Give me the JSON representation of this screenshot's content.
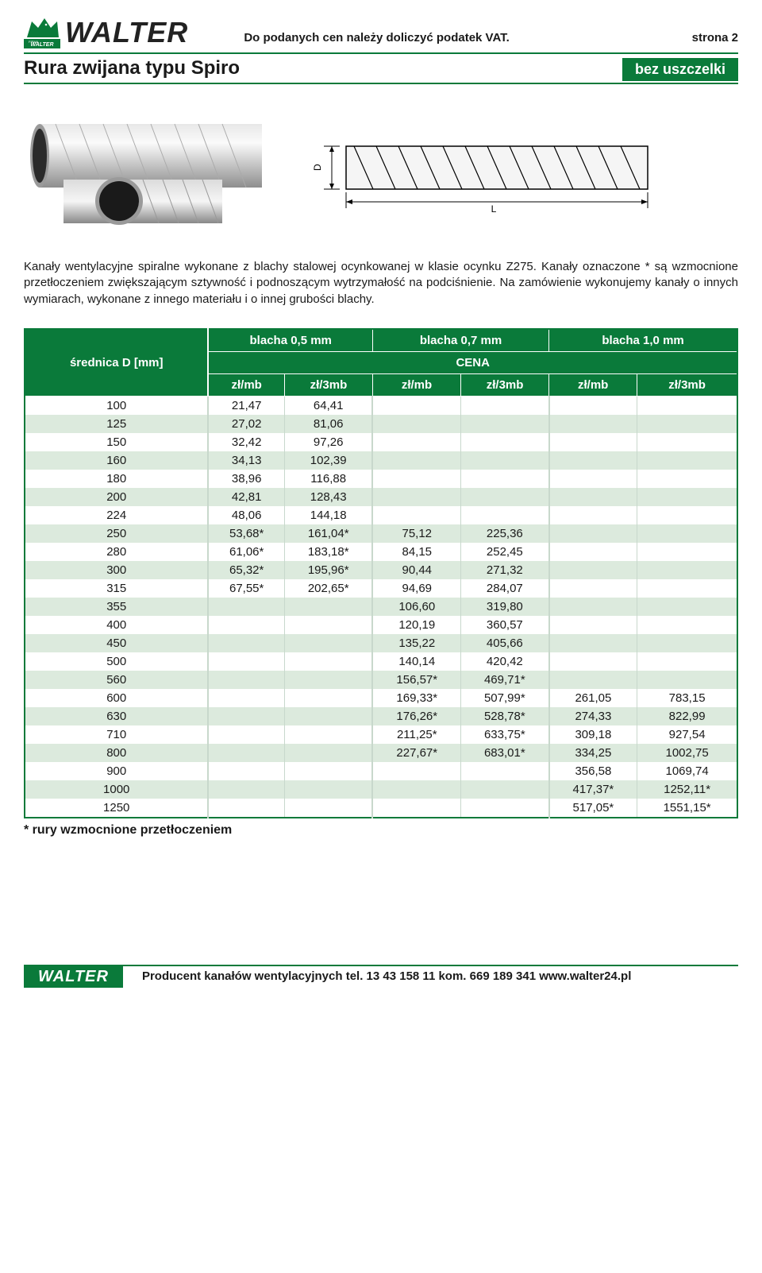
{
  "brand": "WALTER",
  "vat_note": "Do podanych cen należy doliczyć podatek VAT.",
  "page_label": "strona 2",
  "product_title": "Rura zwijana typu Spiro",
  "badge": "bez uszczelki",
  "dim_D": "D",
  "dim_L": "L",
  "description": "Kanały wentylacyjne spiralne wykonane z blachy stalowej ocynkowanej w klasie ocynku Z275. Kanały oznaczone * są wzmocnione przetłoczeniem zwiększającym sztywność i podnoszącym wytrzymałość na podciśnienie. Na zamówienie wykonujemy kanały o innych wymiarach, wykonane z innego materiału i o innej grubości blachy.",
  "table": {
    "row_header": "średnica D [mm]",
    "group_labels": [
      "blacha 0,5 mm",
      "blacha 0,7 mm",
      "blacha 1,0 mm"
    ],
    "price_header": "CENA",
    "sub_labels": [
      "zł/mb",
      "zł/3mb",
      "zł/mb",
      "zł/3mb",
      "zł/mb",
      "zł/3mb"
    ],
    "rows": [
      {
        "d": "100",
        "c": [
          "21,47",
          "64,41",
          "",
          "",
          "",
          ""
        ]
      },
      {
        "d": "125",
        "c": [
          "27,02",
          "81,06",
          "",
          "",
          "",
          ""
        ]
      },
      {
        "d": "150",
        "c": [
          "32,42",
          "97,26",
          "",
          "",
          "",
          ""
        ]
      },
      {
        "d": "160",
        "c": [
          "34,13",
          "102,39",
          "",
          "",
          "",
          ""
        ]
      },
      {
        "d": "180",
        "c": [
          "38,96",
          "116,88",
          "",
          "",
          "",
          ""
        ]
      },
      {
        "d": "200",
        "c": [
          "42,81",
          "128,43",
          "",
          "",
          "",
          ""
        ]
      },
      {
        "d": "224",
        "c": [
          "48,06",
          "144,18",
          "",
          "",
          "",
          ""
        ]
      },
      {
        "d": "250",
        "c": [
          "53,68*",
          "161,04*",
          "75,12",
          "225,36",
          "",
          ""
        ]
      },
      {
        "d": "280",
        "c": [
          "61,06*",
          "183,18*",
          "84,15",
          "252,45",
          "",
          ""
        ]
      },
      {
        "d": "300",
        "c": [
          "65,32*",
          "195,96*",
          "90,44",
          "271,32",
          "",
          ""
        ]
      },
      {
        "d": "315",
        "c": [
          "67,55*",
          "202,65*",
          "94,69",
          "284,07",
          "",
          ""
        ]
      },
      {
        "d": "355",
        "c": [
          "",
          "",
          "106,60",
          "319,80",
          "",
          ""
        ]
      },
      {
        "d": "400",
        "c": [
          "",
          "",
          "120,19",
          "360,57",
          "",
          ""
        ]
      },
      {
        "d": "450",
        "c": [
          "",
          "",
          "135,22",
          "405,66",
          "",
          ""
        ]
      },
      {
        "d": "500",
        "c": [
          "",
          "",
          "140,14",
          "420,42",
          "",
          ""
        ]
      },
      {
        "d": "560",
        "c": [
          "",
          "",
          "156,57*",
          "469,71*",
          "",
          ""
        ]
      },
      {
        "d": "600",
        "c": [
          "",
          "",
          "169,33*",
          "507,99*",
          "261,05",
          "783,15"
        ]
      },
      {
        "d": "630",
        "c": [
          "",
          "",
          "176,26*",
          "528,78*",
          "274,33",
          "822,99"
        ]
      },
      {
        "d": "710",
        "c": [
          "",
          "",
          "211,25*",
          "633,75*",
          "309,18",
          "927,54"
        ]
      },
      {
        "d": "800",
        "c": [
          "",
          "",
          "227,67*",
          "683,01*",
          "334,25",
          "1002,75"
        ]
      },
      {
        "d": "900",
        "c": [
          "",
          "",
          "",
          "",
          "356,58",
          "1069,74"
        ]
      },
      {
        "d": "1000",
        "c": [
          "",
          "",
          "",
          "",
          "417,37*",
          "1252,11*"
        ]
      },
      {
        "d": "1250",
        "c": [
          "",
          "",
          "",
          "",
          "517,05*",
          "1551,15*"
        ]
      }
    ]
  },
  "footnote": "* rury wzmocnione przetłoczeniem",
  "footer_brand": "WALTER",
  "footer_text": "Producent kanałów wentylacyjnych tel. 13 43 158 11 kom. 669 189 341 www.walter24.pl",
  "colors": {
    "brand_green": "#0a7a3a",
    "row_alt": "#dceadd",
    "text": "#1a1a1a"
  }
}
